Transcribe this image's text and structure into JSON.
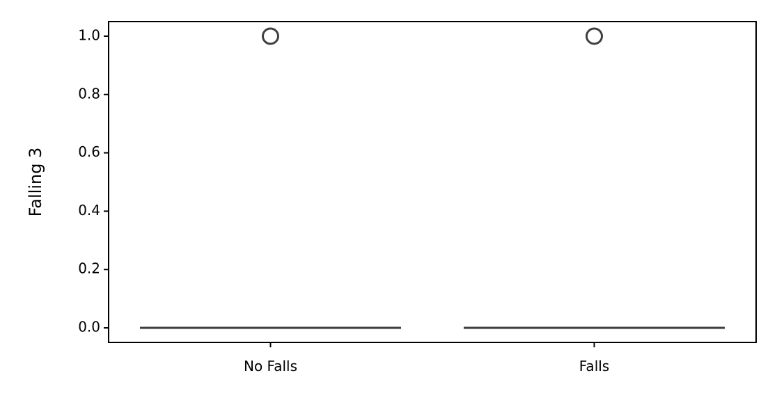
{
  "chart_data": {
    "type": "box",
    "title": "",
    "xlabel": "",
    "ylabel": "Falling 3",
    "ylim": [
      -0.05,
      1.05
    ],
    "yticks": [
      0.0,
      0.2,
      0.4,
      0.6,
      0.8,
      1.0
    ],
    "ytick_labels": [
      "0.0",
      "0.2",
      "0.4",
      "0.6",
      "0.8",
      "1.0"
    ],
    "categories": [
      "No Falls",
      "Falls"
    ],
    "boxes": [
      {
        "category": "No Falls",
        "min": 0.0,
        "q1": 0.0,
        "median": 0.0,
        "q3": 0.0,
        "max": 0.0,
        "outliers": [
          1.0
        ]
      },
      {
        "category": "Falls",
        "min": 0.0,
        "q1": 0.0,
        "median": 0.0,
        "q3": 0.0,
        "max": 0.0,
        "outliers": [
          1.0
        ]
      }
    ],
    "grid": false,
    "colors": {
      "box_line": "#3f3f3f",
      "axis": "#000000",
      "outlier_edge": "#3f3f3f"
    }
  }
}
